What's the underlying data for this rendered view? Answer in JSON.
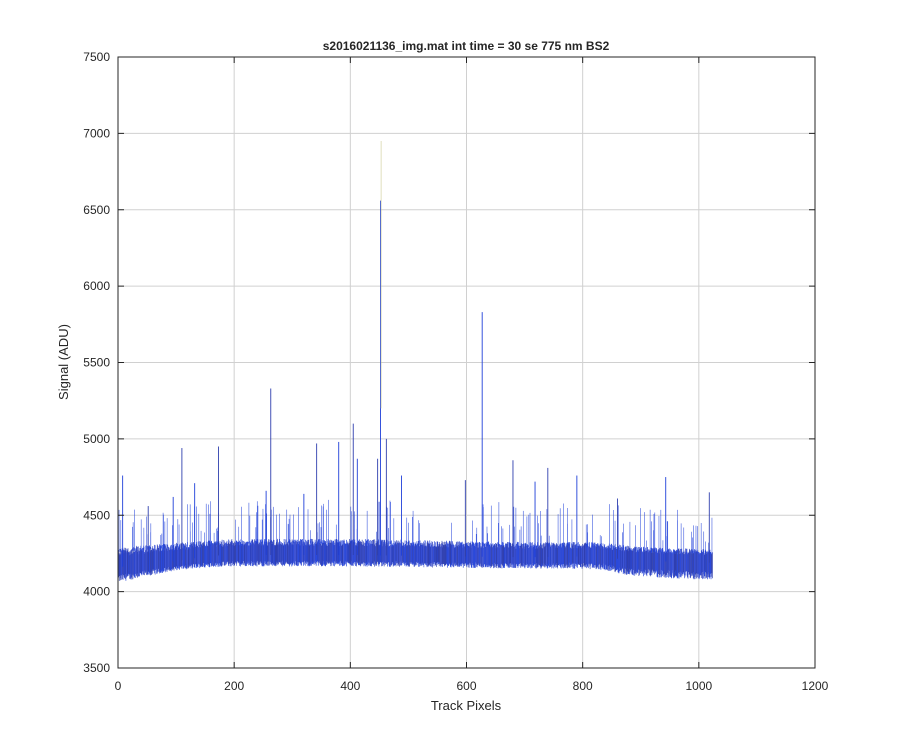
{
  "chart_data": {
    "type": "line",
    "title": "s2016021136_img.mat int time = 30 se  775 nm BS2",
    "xlabel": "Track Pixels",
    "ylabel": "Signal (ADU)",
    "xlim": [
      0,
      1200
    ],
    "ylim": [
      3500,
      7500
    ],
    "xticks": [
      "0",
      "200",
      "400",
      "600",
      "800",
      "1000",
      "1200"
    ],
    "yticks": [
      "3500",
      "4000",
      "4500",
      "5000",
      "5500",
      "6000",
      "6500",
      "7000",
      "7500"
    ],
    "grid": true,
    "x_range": [
      1,
      1024
    ],
    "baseline": {
      "x": [
        0,
        100,
        160,
        200,
        300,
        400,
        500,
        600,
        700,
        800,
        840,
        880,
        920,
        960,
        1000,
        1024
      ],
      "center": [
        4160,
        4200,
        4235,
        4240,
        4240,
        4240,
        4235,
        4230,
        4225,
        4230,
        4225,
        4205,
        4200,
        4195,
        4190,
        4190
      ],
      "noise_upper": [
        4290,
        4320,
        4335,
        4345,
        4345,
        4345,
        4340,
        4330,
        4325,
        4325,
        4320,
        4300,
        4290,
        4285,
        4280,
        4275
      ],
      "noise_lower": [
        4060,
        4140,
        4160,
        4165,
        4165,
        4165,
        4160,
        4155,
        4150,
        4150,
        4140,
        4105,
        4095,
        4085,
        4080,
        4080
      ]
    },
    "spikes": [
      {
        "x": 8,
        "y": 4760
      },
      {
        "x": 52,
        "y": 4560
      },
      {
        "x": 95,
        "y": 4620
      },
      {
        "x": 110,
        "y": 4940
      },
      {
        "x": 132,
        "y": 4710
      },
      {
        "x": 173,
        "y": 4950
      },
      {
        "x": 255,
        "y": 4660
      },
      {
        "x": 263,
        "y": 5330
      },
      {
        "x": 320,
        "y": 4640
      },
      {
        "x": 342,
        "y": 4970
      },
      {
        "x": 380,
        "y": 4980
      },
      {
        "x": 405,
        "y": 5100
      },
      {
        "x": 412,
        "y": 4870
      },
      {
        "x": 447,
        "y": 4870
      },
      {
        "x": 452,
        "y": 6560
      },
      {
        "x": 462,
        "y": 5000
      },
      {
        "x": 488,
        "y": 4760
      },
      {
        "x": 598,
        "y": 4730
      },
      {
        "x": 627,
        "y": 5830
      },
      {
        "x": 680,
        "y": 4860
      },
      {
        "x": 718,
        "y": 4720
      },
      {
        "x": 740,
        "y": 4810
      },
      {
        "x": 790,
        "y": 4760
      },
      {
        "x": 860,
        "y": 4610
      },
      {
        "x": 943,
        "y": 4750
      },
      {
        "x": 1018,
        "y": 4650
      }
    ],
    "series_colors": [
      "#1f3fd9",
      "#2f3fae",
      "#3a4fd0",
      "#c8c48a"
    ],
    "axis_color": "#262626",
    "grid_color": "#d0d0d0"
  }
}
